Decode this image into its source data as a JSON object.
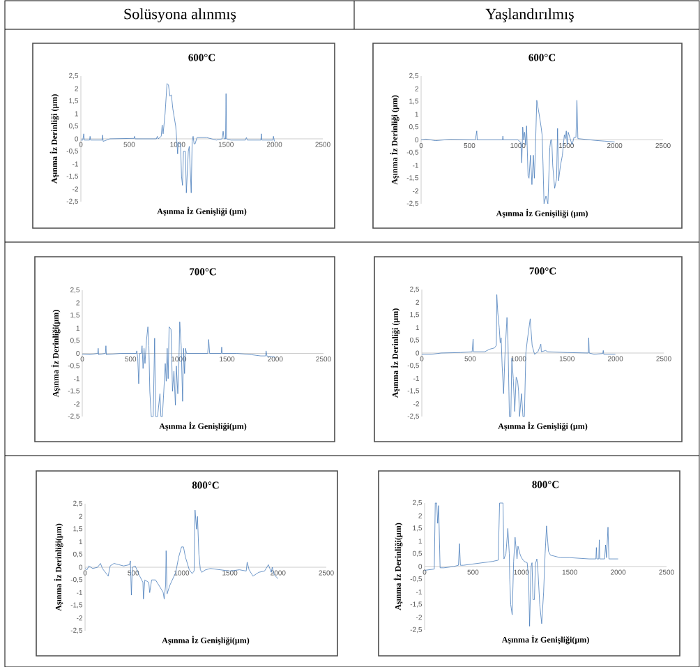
{
  "chart_data": [
    {
      "type": "other",
      "title": "Solüsyona alınmış"
    },
    {
      "type": "other",
      "title": "Yaşlandırılmış"
    },
    {
      "type": "line",
      "title": "600°C",
      "xlabel": "Aşınma İz Genişliği (µm)",
      "ylabel": "Aşınma İz Derinliği (µm)",
      "color": "#4a7ebb",
      "xlim": [
        0,
        2500
      ],
      "ylim": [
        -2.5,
        2.5
      ],
      "xticks": [
        0,
        500,
        1000,
        1500,
        2000,
        2500
      ],
      "yticks": [
        {
          "value": -2.5,
          "label": "-2,5"
        },
        {
          "value": -2,
          "label": "-2"
        },
        {
          "value": -1.5,
          "label": "-1,5"
        },
        {
          "value": -1,
          "label": "-1"
        },
        {
          "value": -0.5,
          "label": "-0,5"
        },
        {
          "value": 0,
          "label": "0"
        },
        {
          "value": 0.5,
          "label": "0,5"
        },
        {
          "value": 1,
          "label": "1"
        },
        {
          "value": 1.5,
          "label": "1,5"
        },
        {
          "value": 2,
          "label": "2"
        },
        {
          "value": 2.5,
          "label": "2,5"
        }
      ],
      "x": [
        0,
        20,
        30,
        35,
        90,
        95,
        100,
        220,
        225,
        230,
        300,
        550,
        555,
        560,
        780,
        790,
        800,
        830,
        840,
        850,
        870,
        890,
        905,
        920,
        935,
        950,
        980,
        990,
        1000,
        1005,
        1030,
        1040,
        1050,
        1060,
        1080,
        1090,
        1110,
        1120,
        1140,
        1150,
        1160,
        1170,
        1180,
        1200,
        1300,
        1350,
        1400,
        1460,
        1470,
        1480,
        1495,
        1500,
        1505,
        1550,
        1700,
        1710,
        1720,
        1860,
        1865,
        1870,
        1985,
        1990,
        2000
      ],
      "values": [
        -0.05,
        -0.05,
        0.2,
        -0.05,
        -0.05,
        0.1,
        -0.05,
        -0.05,
        0.15,
        -0.1,
        0,
        0.02,
        0.1,
        0,
        0,
        0.1,
        0,
        0.1,
        0.55,
        0.2,
        1.0,
        2.2,
        2.15,
        1.7,
        1.75,
        1.2,
        0.5,
        0,
        -0.6,
        -0.15,
        -0.2,
        -1.5,
        -1.85,
        -0.5,
        -0.5,
        -2.15,
        -0.5,
        -0.3,
        -2.15,
        -0.1,
        0.1,
        -0.2,
        -0.2,
        0.05,
        0.05,
        0,
        -0.05,
        0,
        0.3,
        0,
        0,
        1.8,
        0,
        -0.05,
        -0.05,
        0.05,
        -0.05,
        -0.05,
        0.2,
        -0.05,
        -0.05,
        0.1,
        -0.1
      ]
    },
    {
      "type": "line",
      "title": "600°C",
      "xlabel": "Aşınma İz Genişiliği (µm)",
      "ylabel": "Aşınma İz Derinliği (µm)",
      "color": "#4a7ebb",
      "xlim": [
        0,
        2500
      ],
      "ylim": [
        -2.5,
        2.5
      ],
      "xticks": [
        0,
        500,
        1000,
        1500,
        2000,
        2500
      ],
      "yticks": [
        {
          "value": -2.5,
          "label": "-2,5"
        },
        {
          "value": -2,
          "label": "-2"
        },
        {
          "value": -1.5,
          "label": "-1,5"
        },
        {
          "value": -1,
          "label": "-1"
        },
        {
          "value": -0.5,
          "label": "-0,5"
        },
        {
          "value": 0,
          "label": "0"
        },
        {
          "value": 0.5,
          "label": "0,5"
        },
        {
          "value": 1,
          "label": "1"
        },
        {
          "value": 1.5,
          "label": "1,5"
        },
        {
          "value": 2,
          "label": "2"
        },
        {
          "value": 2.5,
          "label": "2,5"
        }
      ],
      "x": [
        0,
        50,
        150,
        300,
        560,
        575,
        580,
        840,
        845,
        850,
        1000,
        1030,
        1040,
        1050,
        1060,
        1070,
        1080,
        1090,
        1105,
        1115,
        1130,
        1145,
        1160,
        1170,
        1180,
        1195,
        1220,
        1240,
        1250,
        1260,
        1270,
        1290,
        1310,
        1330,
        1340,
        1350,
        1360,
        1380,
        1400,
        1410,
        1420,
        1440,
        1460,
        1480,
        1490,
        1500,
        1510,
        1520,
        1540,
        1560,
        1580,
        1600,
        1610,
        1620,
        1700,
        1800,
        1900,
        2000
      ],
      "values": [
        0,
        0.03,
        -0.03,
        0.02,
        0,
        0.35,
        0,
        0,
        0.15,
        0,
        0,
        -0.1,
        -0.9,
        0.5,
        0,
        0.3,
        -0.2,
        0.55,
        -1.4,
        -1.5,
        -0.6,
        -1.75,
        -0.6,
        -1.5,
        -0.5,
        1.55,
        1.0,
        0.5,
        0.2,
        -1.0,
        -2.5,
        -2.2,
        -2.5,
        -0.3,
        0,
        0,
        -1.0,
        -1.9,
        -1.5,
        0.45,
        -1.6,
        -1.0,
        -0.6,
        0.2,
        0.05,
        0.35,
        -0.2,
        0.3,
        0.05,
        -0.2,
        0.1,
        0.1,
        1.55,
        0.05,
        0.02,
        -0.02,
        -0.05,
        -0.08
      ]
    },
    {
      "type": "line",
      "title": "700°C",
      "xlabel": "Aşınma İz Genişliği(µm)",
      "ylabel": "Aşınma İz Derinliği(µm)",
      "color": "#4a7ebb",
      "xlim": [
        0,
        2500
      ],
      "ylim": [
        -2.5,
        2.5
      ],
      "xticks": [
        0,
        500,
        1000,
        1500,
        2000,
        2500
      ],
      "yticks": [
        {
          "value": -2.5,
          "label": "-2,5"
        },
        {
          "value": -2,
          "label": "-2"
        },
        {
          "value": -1.5,
          "label": "-1,5"
        },
        {
          "value": -1,
          "label": "-1"
        },
        {
          "value": -0.5,
          "label": "-0,5"
        },
        {
          "value": 0,
          "label": "0"
        },
        {
          "value": 0.5,
          "label": "0,5"
        },
        {
          "value": 1,
          "label": "1"
        },
        {
          "value": 1.5,
          "label": "1,5"
        },
        {
          "value": 2,
          "label": "2"
        },
        {
          "value": 2.5,
          "label": "2,5"
        }
      ],
      "x": [
        0,
        80,
        160,
        165,
        170,
        240,
        245,
        250,
        400,
        560,
        565,
        575,
        585,
        595,
        610,
        620,
        630,
        640,
        650,
        665,
        680,
        690,
        700,
        715,
        735,
        750,
        760,
        780,
        805,
        815,
        830,
        845,
        860,
        870,
        880,
        890,
        900,
        920,
        935,
        950,
        965,
        975,
        990,
        1000,
        1010,
        1025,
        1040,
        1050,
        1060,
        1070,
        1080,
        1100,
        1300,
        1310,
        1320,
        1440,
        1445,
        1450,
        1600,
        1750,
        1850,
        1900,
        1905,
        1915,
        2000
      ],
      "values": [
        -0.03,
        -0.05,
        0,
        0.2,
        -0.05,
        0,
        0.3,
        -0.05,
        0,
        0,
        0.1,
        -0.2,
        -1.2,
        0,
        0,
        0.3,
        -0.6,
        0.2,
        -0.4,
        0.5,
        1.05,
        0.3,
        -1.5,
        -2.5,
        -2.5,
        0.6,
        -2.5,
        -2.5,
        -1.6,
        -2.5,
        -2.5,
        -1.5,
        -0.4,
        -1.1,
        0.2,
        -1.0,
        1.05,
        0.95,
        -1.5,
        -0.7,
        -2.05,
        -0.5,
        -1.6,
        -0.6,
        1.25,
        0.3,
        -1.9,
        0.2,
        -0.8,
        0.2,
        0,
        0,
        0,
        0.55,
        0,
        0,
        0.25,
        0,
        0,
        -0.05,
        -0.1,
        -0.1,
        0.1,
        -0.12,
        -0.15
      ]
    },
    {
      "type": "line",
      "title": "700°C",
      "xlabel": "Aşınma İz Genişliği (µm)",
      "ylabel": "Aşınma İz Derinliği (µm)",
      "color": "#4a7ebb",
      "xlim": [
        0,
        2500
      ],
      "ylim": [
        -2.5,
        2.5
      ],
      "xticks": [
        0,
        500,
        1000,
        1500,
        2000,
        2500
      ],
      "yticks": [
        {
          "value": -2.5,
          "label": "-2,5"
        },
        {
          "value": -2,
          "label": "-2"
        },
        {
          "value": -1.5,
          "label": "-1,5"
        },
        {
          "value": -1,
          "label": "-1"
        },
        {
          "value": -0.5,
          "label": "-0,5"
        },
        {
          "value": 0,
          "label": "0"
        },
        {
          "value": 0.5,
          "label": "0,5"
        },
        {
          "value": 1,
          "label": "1"
        },
        {
          "value": 1.5,
          "label": "1,5"
        },
        {
          "value": 2,
          "label": "2"
        },
        {
          "value": 2.5,
          "label": "2,5"
        }
      ],
      "x": [
        0,
        100,
        200,
        400,
        520,
        530,
        535,
        650,
        700,
        750,
        770,
        775,
        785,
        800,
        810,
        820,
        830,
        845,
        860,
        880,
        890,
        900,
        905,
        920,
        930,
        945,
        960,
        975,
        990,
        1000,
        1010,
        1030,
        1045,
        1060,
        1075,
        1090,
        1120,
        1140,
        1165,
        1200,
        1230,
        1235,
        1280,
        1300,
        1500,
        1720,
        1725,
        1730,
        1780,
        1870,
        1875,
        1880,
        2000
      ],
      "values": [
        -0.05,
        -0.05,
        0,
        0.02,
        0.05,
        0.55,
        0.05,
        0.05,
        0.15,
        0.2,
        0.3,
        2.3,
        1.6,
        1.0,
        0.4,
        0.6,
        -0.5,
        -1.6,
        0,
        1.4,
        0.5,
        -1.5,
        -2.5,
        -2.5,
        -0.2,
        -1.0,
        -2.3,
        -0.95,
        -1.1,
        -1.5,
        -2.5,
        -1.6,
        -2.5,
        -2.5,
        0,
        0.5,
        1.35,
        0.3,
        -0.05,
        0.05,
        0.35,
        0.05,
        0.1,
        0.05,
        0.02,
        0,
        0.6,
        0,
        -0.05,
        -0.02,
        0.1,
        -0.05,
        -0.05
      ]
    },
    {
      "type": "line",
      "title": "800°C",
      "xlabel": "Aşınma İz Genişliği(µm)",
      "ylabel": "Aşınma İz Derinliği(µm)",
      "color": "#4a7ebb",
      "xlim": [
        0,
        2500
      ],
      "ylim": [
        -2.5,
        2.5
      ],
      "xticks": [
        0,
        500,
        1000,
        1500,
        2000,
        2500
      ],
      "yticks": [
        {
          "value": -2.5,
          "label": "-2,5"
        },
        {
          "value": -2,
          "label": "-2"
        },
        {
          "value": -1.5,
          "label": "-1,5"
        },
        {
          "value": -1,
          "label": "-1"
        },
        {
          "value": -0.5,
          "label": "-0,5"
        },
        {
          "value": 0,
          "label": "0"
        },
        {
          "value": 0.5,
          "label": "0,5"
        },
        {
          "value": 1,
          "label": "1"
        },
        {
          "value": 1.5,
          "label": "1,5"
        },
        {
          "value": 2,
          "label": "2"
        },
        {
          "value": 2.5,
          "label": "2,5"
        }
      ],
      "x": [
        0,
        20,
        40,
        80,
        130,
        160,
        180,
        240,
        260,
        300,
        350,
        400,
        460,
        470,
        480,
        490,
        520,
        560,
        600,
        605,
        620,
        660,
        670,
        690,
        730,
        780,
        810,
        820,
        835,
        840,
        850,
        880,
        940,
        970,
        1000,
        1020,
        1040,
        1080,
        1110,
        1130,
        1140,
        1155,
        1165,
        1180,
        1195,
        1210,
        1250,
        1300,
        1400,
        1500,
        1600,
        1670,
        1680,
        1700,
        1740,
        1800,
        1860,
        1900,
        1930,
        1940,
        1960,
        2000
      ],
      "values": [
        -0.05,
        -0.1,
        0.05,
        -0.05,
        0,
        0.15,
        -0.05,
        -0.35,
        0.05,
        0.15,
        0.1,
        0.05,
        0.1,
        0.25,
        -1.1,
        0,
        0.05,
        -0.3,
        -0.6,
        -1.25,
        -0.5,
        -0.6,
        -1.0,
        -0.5,
        -0.5,
        -0.8,
        -1.0,
        -1.25,
        -0.7,
        0.65,
        -1.05,
        -0.7,
        -0.2,
        0.4,
        0.8,
        0.8,
        0.4,
        -0.1,
        -0.25,
        -0.15,
        2.25,
        1.5,
        2.0,
        0.5,
        -0.1,
        -0.2,
        -0.1,
        -0.05,
        -0.1,
        -0.15,
        -0.1,
        -0.15,
        0.2,
        -0.1,
        -0.35,
        -0.2,
        -0.15,
        0.1,
        -0.2,
        0,
        -0.3,
        -0.45
      ]
    },
    {
      "type": "line",
      "title": "800°C",
      "xlabel": "Aşınma İz Genişliği(µm)",
      "ylabel": "Aşınma İz Derinliği(µm)",
      "color": "#4a7ebb",
      "xlim": [
        0,
        2500
      ],
      "ylim": [
        -2.5,
        2.5
      ],
      "xticks": [
        0,
        500,
        1000,
        1500,
        2000,
        2500
      ],
      "yticks": [
        {
          "value": -2.5,
          "label": "-2,5"
        },
        {
          "value": -2,
          "label": "-2"
        },
        {
          "value": -1.5,
          "label": "-1,5"
        },
        {
          "value": -1,
          "label": "-1"
        },
        {
          "value": -0.5,
          "label": "-0,5"
        },
        {
          "value": 0,
          "label": "0"
        },
        {
          "value": 0.5,
          "label": "0,5"
        },
        {
          "value": 1,
          "label": "1"
        },
        {
          "value": 1.5,
          "label": "1,5"
        },
        {
          "value": 2,
          "label": "2"
        },
        {
          "value": 2.5,
          "label": "2,5"
        }
      ],
      "x": [
        0,
        100,
        110,
        125,
        135,
        145,
        160,
        200,
        300,
        350,
        360,
        370,
        400,
        500,
        600,
        700,
        760,
        775,
        810,
        820,
        840,
        860,
        875,
        880,
        890,
        905,
        920,
        935,
        955,
        965,
        985,
        1000,
        1030,
        1060,
        1075,
        1085,
        1100,
        1110,
        1120,
        1135,
        1145,
        1160,
        1170,
        1190,
        1210,
        1230,
        1245,
        1260,
        1280,
        1300,
        1400,
        1500,
        1700,
        1770,
        1775,
        1780,
        1800,
        1805,
        1810,
        1860,
        1870,
        1880,
        1895,
        1905,
        2000
      ],
      "values": [
        -0.15,
        -0.1,
        2.5,
        2.5,
        1.7,
        2.4,
        -0.05,
        -0.05,
        0,
        0.05,
        0.9,
        0.05,
        0.05,
        0.1,
        0.15,
        0.2,
        0.25,
        2.5,
        2.5,
        0.3,
        0.5,
        1.5,
        0.5,
        -0.5,
        -1.5,
        -1.9,
        0.2,
        1.15,
        0.3,
        0.8,
        0.5,
        0.35,
        0.2,
        0.15,
        -0.5,
        -2.35,
        0,
        0.15,
        -1.3,
        -1.3,
        0.1,
        0.3,
        -0.1,
        -1.5,
        -2.25,
        -1.0,
        0.5,
        1.6,
        0.6,
        0.45,
        0.35,
        0.35,
        0.3,
        0.3,
        0.75,
        0.3,
        0.3,
        1.05,
        0.3,
        0.3,
        0.85,
        0.35,
        1.55,
        0.3,
        0.3
      ]
    }
  ]
}
